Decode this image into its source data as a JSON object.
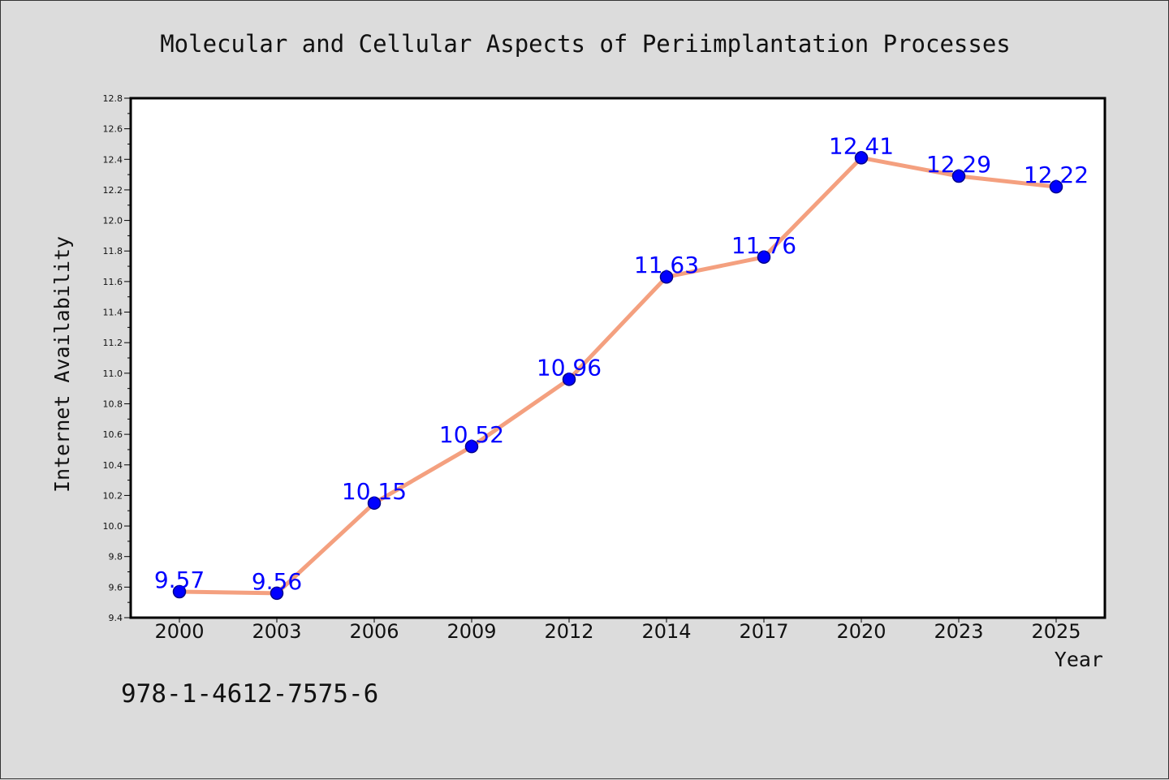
{
  "chart_data": {
    "type": "line",
    "title": "Molecular and Cellular Aspects of Periimplantation Processes",
    "xlabel": "Year",
    "ylabel": "Internet Availability",
    "categories": [
      "2000",
      "2003",
      "2006",
      "2009",
      "2012",
      "2014",
      "2017",
      "2020",
      "2023",
      "2025"
    ],
    "series": [
      {
        "values": [
          9.57,
          9.56,
          10.15,
          10.52,
          10.96,
          11.63,
          11.76,
          12.41,
          12.29,
          12.22
        ],
        "data_labels": [
          "9.57",
          "9.56",
          "10.15",
          "10.52",
          "10.96",
          "11.63",
          "11.76",
          "12.41",
          "12.29",
          "12.22"
        ]
      }
    ],
    "ylim": [
      9.4,
      12.8
    ],
    "yticks": [
      "9.4",
      "9.6",
      "9.8",
      "10.0",
      "10.2",
      "10.4",
      "10.6",
      "10.8",
      "11.0",
      "11.2",
      "11.4",
      "11.6",
      "11.8",
      "12.0",
      "12.2",
      "12.4",
      "12.6",
      "12.8"
    ],
    "grid": false,
    "legend": "none",
    "colors": {
      "line": "#f4a07f",
      "marker": "#0000ff",
      "marker_edge": "#00008b",
      "data_label": "#0000ff",
      "background": "#dcdcdc",
      "plot_background": "#ffffff"
    }
  },
  "annotation": "978-1-4612-7575-6"
}
